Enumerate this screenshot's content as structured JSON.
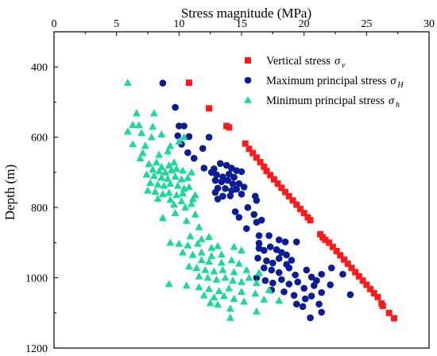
{
  "chart_data": {
    "type": "scatter",
    "xlabel": "Stress magnitude (MPa)",
    "ylabel": "Depth (m)",
    "x_axis_position": "top",
    "y_axis_inverted": true,
    "xlim": [
      0,
      30
    ],
    "ylim": [
      1200,
      300
    ],
    "xticks": [
      "0",
      "5",
      "10",
      "15",
      "20",
      "25",
      "30"
    ],
    "yticks": [
      "400",
      "600",
      "800",
      "1000",
      "1200"
    ],
    "grid": false,
    "legend_position": "top-right",
    "series": [
      {
        "name": "Vertical stress",
        "symbol": "σ",
        "subscript": "v",
        "marker": "square",
        "color": "#ff1a1a",
        "points": [
          [
            10.8,
            445
          ],
          [
            12.4,
            518
          ],
          [
            13.8,
            568
          ],
          [
            14.0,
            572
          ],
          [
            15.3,
            618
          ],
          [
            15.6,
            633
          ],
          [
            15.9,
            645
          ],
          [
            16.2,
            658
          ],
          [
            16.5,
            671
          ],
          [
            16.8,
            684
          ],
          [
            17.0,
            696
          ],
          [
            17.3,
            708
          ],
          [
            17.6,
            720
          ],
          [
            17.9,
            732
          ],
          [
            18.2,
            744
          ],
          [
            18.5,
            756
          ],
          [
            18.8,
            768
          ],
          [
            19.1,
            780
          ],
          [
            19.4,
            792
          ],
          [
            19.7,
            804
          ],
          [
            20.0,
            816
          ],
          [
            20.3,
            828
          ],
          [
            20.5,
            836
          ],
          [
            21.3,
            876
          ],
          [
            21.5,
            885
          ],
          [
            21.7,
            892
          ],
          [
            22.0,
            900
          ],
          [
            22.3,
            912
          ],
          [
            22.6,
            924
          ],
          [
            22.9,
            936
          ],
          [
            23.2,
            948
          ],
          [
            23.5,
            960
          ],
          [
            23.8,
            972
          ],
          [
            24.1,
            984
          ],
          [
            24.4,
            996
          ],
          [
            24.7,
            1008
          ],
          [
            25.0,
            1020
          ],
          [
            25.3,
            1032
          ],
          [
            25.6,
            1044
          ],
          [
            25.9,
            1055
          ],
          [
            26.2,
            1073
          ],
          [
            26.3,
            1080
          ],
          [
            26.8,
            1100
          ],
          [
            27.2,
            1115
          ]
        ]
      },
      {
        "name": "Maximum principal stress",
        "symbol": "σ",
        "subscript": "H",
        "marker": "circle",
        "color": "#0a1c96",
        "points": [
          [
            8.7,
            446
          ],
          [
            9.7,
            515
          ],
          [
            10.0,
            568
          ],
          [
            10.4,
            568
          ],
          [
            9.9,
            596
          ],
          [
            10.8,
            598
          ],
          [
            10.2,
            620
          ],
          [
            10.7,
            644
          ],
          [
            11.2,
            660
          ],
          [
            11.9,
            632
          ],
          [
            12.4,
            600
          ],
          [
            12.0,
            688
          ],
          [
            12.8,
            690
          ],
          [
            13.3,
            675
          ],
          [
            13.8,
            680
          ],
          [
            14.2,
            688
          ],
          [
            14.6,
            695
          ],
          [
            15.0,
            698
          ],
          [
            12.6,
            700
          ],
          [
            13.0,
            707
          ],
          [
            13.5,
            713
          ],
          [
            14.0,
            705
          ],
          [
            14.4,
            714
          ],
          [
            12.9,
            723
          ],
          [
            13.4,
            727
          ],
          [
            13.9,
            723
          ],
          [
            14.3,
            733
          ],
          [
            14.8,
            732
          ],
          [
            13.1,
            745
          ],
          [
            13.7,
            746
          ],
          [
            14.2,
            752
          ],
          [
            14.6,
            748
          ],
          [
            15.2,
            742
          ],
          [
            12.9,
            757
          ],
          [
            13.5,
            768
          ],
          [
            13.1,
            776
          ],
          [
            14.1,
            767
          ],
          [
            15.0,
            762
          ],
          [
            16.1,
            768
          ],
          [
            16.2,
            780
          ],
          [
            15.5,
            800
          ],
          [
            14.5,
            812
          ],
          [
            14.8,
            828
          ],
          [
            16.0,
            820
          ],
          [
            16.2,
            842
          ],
          [
            15.4,
            860
          ],
          [
            16.6,
            836
          ],
          [
            16.4,
            880
          ],
          [
            16.4,
            902
          ],
          [
            17.2,
            880
          ],
          [
            18.0,
            892
          ],
          [
            18.5,
            898
          ],
          [
            19.4,
            898
          ],
          [
            16.4,
            916
          ],
          [
            16.8,
            922
          ],
          [
            17.3,
            912
          ],
          [
            17.8,
            920
          ],
          [
            18.2,
            928
          ],
          [
            18.6,
            935
          ],
          [
            16.3,
            944
          ],
          [
            17.0,
            952
          ],
          [
            17.5,
            958
          ],
          [
            18.0,
            945
          ],
          [
            18.6,
            962
          ],
          [
            19.0,
            950
          ],
          [
            16.8,
            972
          ],
          [
            17.4,
            978
          ],
          [
            18.0,
            985
          ],
          [
            18.8,
            972
          ],
          [
            19.3,
            992
          ],
          [
            20.2,
            978
          ],
          [
            20.6,
            998
          ],
          [
            21.0,
            1008
          ],
          [
            21.4,
            990
          ],
          [
            22.2,
            972
          ],
          [
            23.1,
            990
          ],
          [
            16.2,
            1000
          ],
          [
            16.9,
            1008
          ],
          [
            17.5,
            1015
          ],
          [
            18.2,
            1005
          ],
          [
            18.8,
            1018
          ],
          [
            19.5,
            1012
          ],
          [
            20.0,
            1030
          ],
          [
            20.8,
            1022
          ],
          [
            21.4,
            1042
          ],
          [
            22.1,
            1020
          ],
          [
            17.4,
            1035
          ],
          [
            18.4,
            1040
          ],
          [
            19.2,
            1050
          ],
          [
            20.1,
            1060
          ],
          [
            20.6,
            1052
          ],
          [
            19.4,
            1075
          ],
          [
            19.9,
            1082
          ],
          [
            21.2,
            1075
          ],
          [
            23.7,
            1048
          ],
          [
            21.4,
            1098
          ],
          [
            20.5,
            1114
          ]
        ]
      },
      {
        "name": "Minimum principal stress",
        "symbol": "σ",
        "subscript": "h",
        "marker": "triangle",
        "color": "#1ed898",
        "points": [
          [
            5.9,
            445
          ],
          [
            6.6,
            532
          ],
          [
            8.0,
            532
          ],
          [
            6.3,
            565
          ],
          [
            6.8,
            566
          ],
          [
            7.9,
            570
          ],
          [
            5.9,
            584
          ],
          [
            7.0,
            588
          ],
          [
            7.8,
            600
          ],
          [
            8.6,
            592
          ],
          [
            6.3,
            620
          ],
          [
            7.3,
            624
          ],
          [
            7.1,
            645
          ],
          [
            6.9,
            660
          ],
          [
            8.4,
            650
          ],
          [
            9.1,
            640
          ],
          [
            9.3,
            625
          ],
          [
            10.0,
            612
          ],
          [
            10.4,
            600
          ],
          [
            7.6,
            676
          ],
          [
            8.2,
            672
          ],
          [
            8.6,
            685
          ],
          [
            9.2,
            680
          ],
          [
            9.6,
            672
          ],
          [
            7.9,
            692
          ],
          [
            8.4,
            697
          ],
          [
            8.9,
            700
          ],
          [
            9.4,
            694
          ],
          [
            9.8,
            690
          ],
          [
            10.3,
            695
          ],
          [
            7.4,
            706
          ],
          [
            8.0,
            710
          ],
          [
            8.6,
            715
          ],
          [
            9.1,
            718
          ],
          [
            9.7,
            712
          ],
          [
            10.2,
            720
          ],
          [
            10.7,
            716
          ],
          [
            11.0,
            700
          ],
          [
            7.7,
            730
          ],
          [
            8.3,
            735
          ],
          [
            8.8,
            738
          ],
          [
            9.3,
            732
          ],
          [
            9.9,
            738
          ],
          [
            10.4,
            746
          ],
          [
            7.5,
            752
          ],
          [
            8.1,
            755
          ],
          [
            8.7,
            762
          ],
          [
            9.2,
            758
          ],
          [
            9.8,
            765
          ],
          [
            10.3,
            760
          ],
          [
            10.8,
            742
          ],
          [
            8.3,
            775
          ],
          [
            9.3,
            778
          ],
          [
            10.2,
            782
          ],
          [
            11.1,
            776
          ],
          [
            11.3,
            765
          ],
          [
            9.6,
            792
          ],
          [
            10.5,
            800
          ],
          [
            11.0,
            790
          ],
          [
            8.7,
            830
          ],
          [
            9.7,
            816
          ],
          [
            10.6,
            838
          ],
          [
            11.3,
            820
          ],
          [
            11.6,
            856
          ],
          [
            10.9,
            882
          ],
          [
            11.8,
            890
          ],
          [
            12.4,
            884
          ],
          [
            9.3,
            900
          ],
          [
            10.0,
            903
          ],
          [
            10.7,
            908
          ],
          [
            11.5,
            903
          ],
          [
            12.6,
            915
          ],
          [
            13.1,
            910
          ],
          [
            10.3,
            928
          ],
          [
            11.1,
            935
          ],
          [
            11.8,
            928
          ],
          [
            12.6,
            938
          ],
          [
            13.4,
            934
          ],
          [
            14.4,
            912
          ],
          [
            15.0,
            922
          ],
          [
            11.8,
            950
          ],
          [
            12.4,
            954
          ],
          [
            13.4,
            957
          ],
          [
            14.2,
            950
          ],
          [
            14.8,
            960
          ],
          [
            10.8,
            968
          ],
          [
            11.4,
            972
          ],
          [
            12.1,
            978
          ],
          [
            12.8,
            982
          ],
          [
            13.5,
            978
          ],
          [
            14.4,
            984
          ],
          [
            15.4,
            978
          ],
          [
            16.4,
            986
          ],
          [
            11.6,
            996
          ],
          [
            12.3,
            1000
          ],
          [
            13.0,
            1005
          ],
          [
            13.7,
            1000
          ],
          [
            14.3,
            1008
          ],
          [
            15.0,
            1012
          ],
          [
            15.6,
            1000
          ],
          [
            16.2,
            1015
          ],
          [
            9.2,
            1018
          ],
          [
            10.6,
            1022
          ],
          [
            11.6,
            1027
          ],
          [
            12.4,
            1032
          ],
          [
            13.2,
            1038
          ],
          [
            14.0,
            1030
          ],
          [
            15.0,
            1040
          ],
          [
            16.1,
            1045
          ],
          [
            17.2,
            1035
          ],
          [
            12.0,
            1050
          ],
          [
            12.8,
            1056
          ],
          [
            13.6,
            1052
          ],
          [
            14.4,
            1060
          ],
          [
            15.2,
            1068
          ],
          [
            16.8,
            1062
          ],
          [
            18.0,
            1065
          ],
          [
            12.5,
            1072
          ],
          [
            13.1,
            1076
          ],
          [
            14.1,
            1088
          ],
          [
            16.2,
            1096
          ],
          [
            14.1,
            1114
          ]
        ]
      }
    ]
  }
}
